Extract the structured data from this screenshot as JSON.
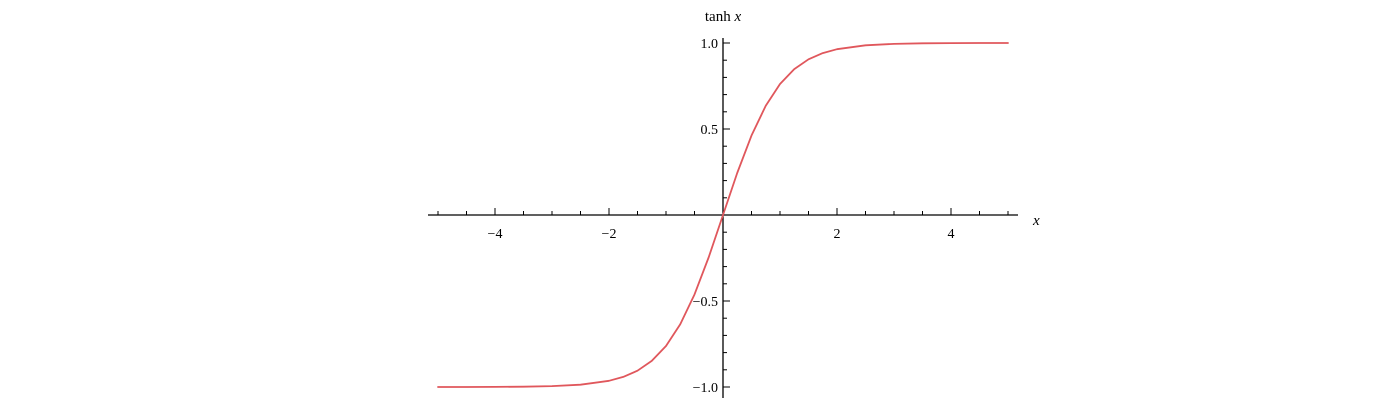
{
  "chart_data": {
    "type": "line",
    "title": "",
    "xlabel": "x",
    "ylabel": "tanh x",
    "xlim": [
      -5.2,
      5.2
    ],
    "ylim": [
      -1.05,
      1.05
    ],
    "x_ticks": [
      -4,
      -2,
      2,
      4
    ],
    "x_tick_labels": [
      "−4",
      "−2",
      "2",
      "4"
    ],
    "x_minor_step": 0.5,
    "y_ticks": [
      1.0,
      0.5,
      -0.5,
      -1.0
    ],
    "y_tick_labels": [
      "1.0",
      "0.5",
      "−0.5",
      "−1.0"
    ],
    "y_minor_step": 0.1,
    "grid": false,
    "series": [
      {
        "color": "#e0575c",
        "x": [
          -5.0,
          -4.5,
          -4.0,
          -3.5,
          -3.0,
          -2.5,
          -2.0,
          -1.75,
          -1.5,
          -1.25,
          -1.0,
          -0.75,
          -0.5,
          -0.25,
          0.0,
          0.25,
          0.5,
          0.75,
          1.0,
          1.25,
          1.5,
          1.75,
          2.0,
          2.5,
          3.0,
          3.5,
          4.0,
          4.5,
          5.0
        ],
        "y": [
          -0.9999,
          -0.9998,
          -0.9993,
          -0.9982,
          -0.9951,
          -0.9866,
          -0.964,
          -0.9414,
          -0.9051,
          -0.8483,
          -0.7616,
          -0.6351,
          -0.4621,
          -0.2449,
          0.0,
          0.2449,
          0.4621,
          0.6351,
          0.7616,
          0.8483,
          0.9051,
          0.9414,
          0.964,
          0.9866,
          0.9951,
          0.9982,
          0.9993,
          0.9998,
          0.9999
        ]
      }
    ]
  }
}
